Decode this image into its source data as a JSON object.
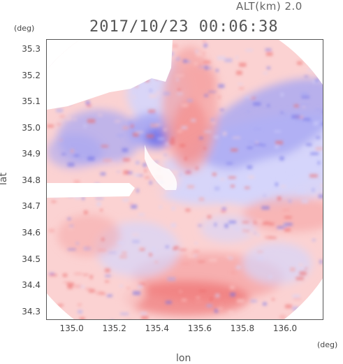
{
  "header": {
    "altitude": "ALT(km)  2.0",
    "timestamp": "2017/10/23 00:06:38"
  },
  "axes": {
    "y_unit": "(deg)",
    "x_unit": "(deg)",
    "y_title": "lat",
    "x_title": "lon",
    "y_ticks": [
      "35.3",
      "35.2",
      "35.1",
      "35.0",
      "34.9",
      "34.8",
      "34.7",
      "34.6",
      "34.5",
      "34.4",
      "34.3"
    ],
    "x_ticks": [
      "135.0",
      "135.2",
      "135.4",
      "135.6",
      "135.8",
      "136.0"
    ]
  },
  "map": {
    "lon_range": [
      134.88,
      136.18
    ],
    "lat_range": [
      34.27,
      35.34
    ],
    "radar_center": {
      "lon": 135.5,
      "lat": 34.8
    },
    "colors": {
      "approaching_dark": "#6f6fe8",
      "approaching": "#a7a7f3",
      "approaching_light": "#d5d5fb",
      "receding_light": "#fbd2d2",
      "receding": "#f5a3a3",
      "receding_dark": "#ec6767",
      "frame": "#555555"
    }
  }
}
